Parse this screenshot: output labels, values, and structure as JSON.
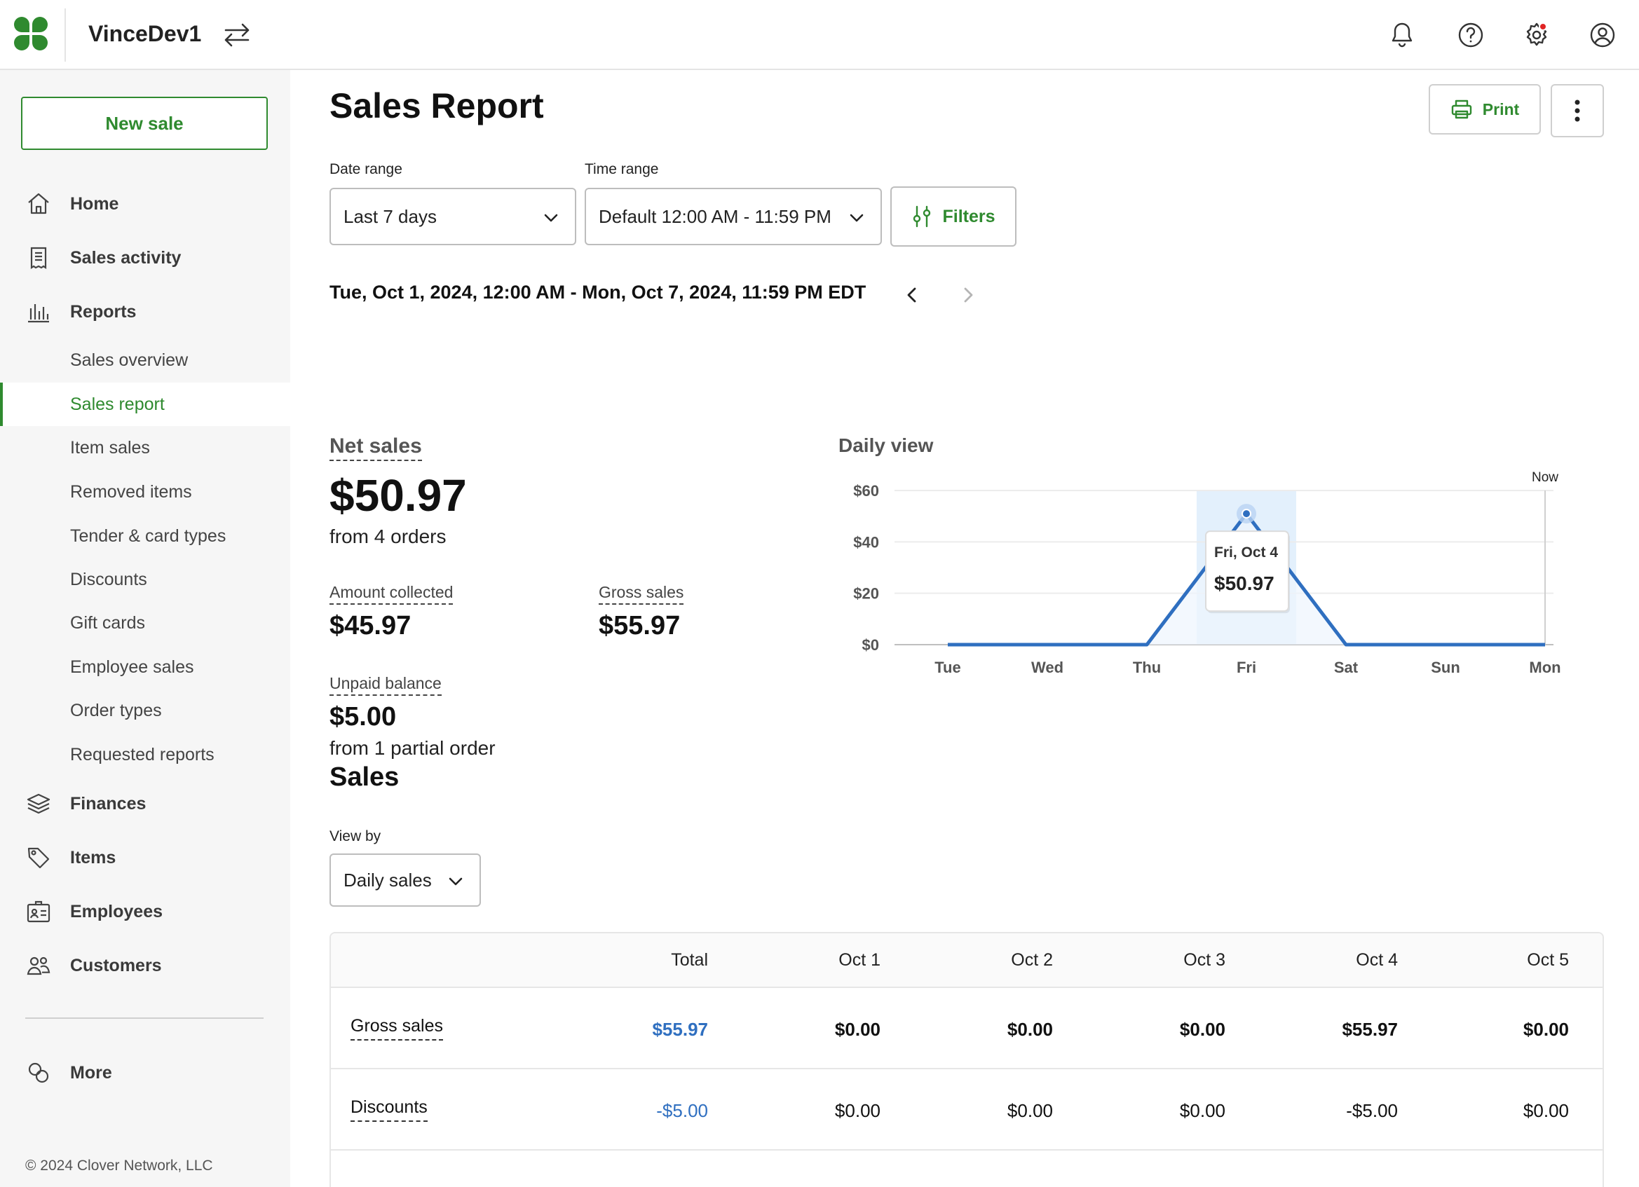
{
  "header": {
    "merchant_name": "VinceDev1"
  },
  "sidebar": {
    "new_sale": "New sale",
    "nav": {
      "home": "Home",
      "sales_activity": "Sales activity",
      "reports": "Reports",
      "finances": "Finances",
      "items": "Items",
      "employees": "Employees",
      "customers": "Customers",
      "more": "More"
    },
    "reports_sub": [
      "Sales overview",
      "Sales report",
      "Item sales",
      "Removed items",
      "Tender & card types",
      "Discounts",
      "Gift cards",
      "Employee sales",
      "Order types",
      "Requested reports"
    ],
    "active_sub": "Sales report",
    "copyright": "© 2024 Clover Network, LLC"
  },
  "page": {
    "title": "Sales Report",
    "print_label": "Print",
    "date_range_label": "Date range",
    "date_range_value": "Last 7 days",
    "time_range_label": "Time range",
    "time_range_value": "Default 12:00 AM - 11:59 PM",
    "filters_label": "Filters",
    "date_line": "Tue, Oct 1, 2024, 12:00 AM - Mon, Oct 7, 2024, 11:59 PM EDT"
  },
  "summary": {
    "net_sales_label": "Net sales",
    "net_sales_value": "$50.97",
    "net_sales_sub": "from 4 orders",
    "amount_collected_label": "Amount collected",
    "amount_collected_value": "$45.97",
    "gross_sales_label": "Gross sales",
    "gross_sales_value": "$55.97",
    "unpaid_label": "Unpaid balance",
    "unpaid_value": "$5.00",
    "unpaid_sub": "from 1 partial order"
  },
  "chart_data": {
    "type": "line",
    "title": "Daily view",
    "categories": [
      "Tue",
      "Wed",
      "Thu",
      "Fri",
      "Sat",
      "Sun",
      "Mon"
    ],
    "series": [
      {
        "values": [
          0,
          0,
          0,
          50.97,
          0,
          0,
          0
        ]
      }
    ],
    "ylim": [
      0,
      60
    ],
    "yticks": [
      "$0",
      "$20",
      "$40",
      "$60"
    ],
    "grid": true,
    "now_label": "Now",
    "highlight_index": 3,
    "tooltip": {
      "date": "Fri, Oct 4",
      "value": "$50.97"
    },
    "colors": {
      "line": "#2f6fc0",
      "highlight": "#e3f0fc"
    }
  },
  "sales": {
    "title": "Sales",
    "view_by_label": "View by",
    "view_by_value": "Daily sales",
    "columns": [
      "Total",
      "Oct 1",
      "Oct 2",
      "Oct 3",
      "Oct 4",
      "Oct 5"
    ],
    "rows": [
      {
        "label": "Gross sales",
        "total": "$55.97",
        "values": [
          "$0.00",
          "$0.00",
          "$0.00",
          "$55.97",
          "$0.00"
        ],
        "bold": true
      },
      {
        "label": "Discounts",
        "total": "-$5.00",
        "values": [
          "$0.00",
          "$0.00",
          "$0.00",
          "-$5.00",
          "$0.00"
        ],
        "bold": false
      }
    ]
  }
}
